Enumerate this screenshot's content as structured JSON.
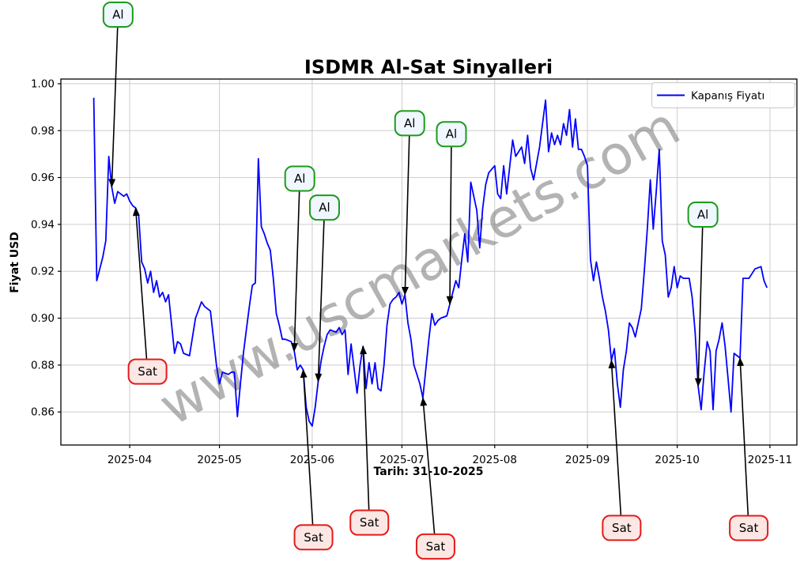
{
  "chart_data": {
    "type": "line",
    "title": "ISDMR Al-Sat Sinyalleri",
    "xlabel": "Tarih: 31-10-2025",
    "ylabel": "Fiyat USD",
    "watermark": "www.uscmarkets.com",
    "legend": "Kapanış Fiyatı",
    "legend_position": "upper-right",
    "grid": true,
    "line_color": "#0000ff",
    "x_domain": [
      "2025-03-09",
      "2025-11-10"
    ],
    "y_domain": [
      0.8459,
      1.002
    ],
    "x_ticks": [
      {
        "date": "2025-04-01",
        "label": "2025-04"
      },
      {
        "date": "2025-05-01",
        "label": "2025-05"
      },
      {
        "date": "2025-06-01",
        "label": "2025-06"
      },
      {
        "date": "2025-07-01",
        "label": "2025-07"
      },
      {
        "date": "2025-08-01",
        "label": "2025-08"
      },
      {
        "date": "2025-09-01",
        "label": "2025-09"
      },
      {
        "date": "2025-10-01",
        "label": "2025-10"
      },
      {
        "date": "2025-11-01",
        "label": "2025-11"
      }
    ],
    "y_ticks": [
      {
        "value": 1.0,
        "label": "1.00"
      },
      {
        "value": 0.98,
        "label": "0.98"
      },
      {
        "value": 0.96,
        "label": "0.96"
      },
      {
        "value": 0.94,
        "label": "0.94"
      },
      {
        "value": 0.92,
        "label": "0.92"
      },
      {
        "value": 0.9,
        "label": "0.90"
      },
      {
        "value": 0.88,
        "label": "0.88"
      },
      {
        "value": 0.86,
        "label": "0.86"
      }
    ],
    "series": [
      {
        "name": "Kapanış Fiyatı",
        "color": "#0000ff",
        "points": [
          [
            "2025-03-20",
            0.994
          ],
          [
            "2025-03-21",
            0.916
          ],
          [
            "2025-03-23",
            0.926
          ],
          [
            "2025-03-24",
            0.933
          ],
          [
            "2025-03-25",
            0.969
          ],
          [
            "2025-03-26",
            0.956
          ],
          [
            "2025-03-27",
            0.949
          ],
          [
            "2025-03-28",
            0.954
          ],
          [
            "2025-03-30",
            0.952
          ],
          [
            "2025-03-31",
            0.953
          ],
          [
            "2025-04-01",
            0.95
          ],
          [
            "2025-04-02",
            0.948
          ],
          [
            "2025-04-03",
            0.947
          ],
          [
            "2025-04-04",
            0.944
          ],
          [
            "2025-04-05",
            0.924
          ],
          [
            "2025-04-06",
            0.921
          ],
          [
            "2025-04-07",
            0.915
          ],
          [
            "2025-04-08",
            0.92
          ],
          [
            "2025-04-09",
            0.911
          ],
          [
            "2025-04-10",
            0.916
          ],
          [
            "2025-04-11",
            0.909
          ],
          [
            "2025-04-12",
            0.911
          ],
          [
            "2025-04-13",
            0.907
          ],
          [
            "2025-04-14",
            0.91
          ],
          [
            "2025-04-16",
            0.885
          ],
          [
            "2025-04-17",
            0.89
          ],
          [
            "2025-04-18",
            0.889
          ],
          [
            "2025-04-19",
            0.885
          ],
          [
            "2025-04-21",
            0.884
          ],
          [
            "2025-04-22",
            0.892
          ],
          [
            "2025-04-23",
            0.9
          ],
          [
            "2025-04-25",
            0.907
          ],
          [
            "2025-04-26",
            0.905
          ],
          [
            "2025-04-28",
            0.903
          ],
          [
            "2025-04-30",
            0.88
          ],
          [
            "2025-05-01",
            0.872
          ],
          [
            "2025-05-02",
            0.877
          ],
          [
            "2025-05-04",
            0.876
          ],
          [
            "2025-05-05",
            0.877
          ],
          [
            "2025-05-06",
            0.877
          ],
          [
            "2025-05-07",
            0.858
          ],
          [
            "2025-05-08",
            0.872
          ],
          [
            "2025-05-09",
            0.885
          ],
          [
            "2025-05-10",
            0.895
          ],
          [
            "2025-05-11",
            0.905
          ],
          [
            "2025-05-12",
            0.914
          ],
          [
            "2025-05-13",
            0.915
          ],
          [
            "2025-05-14",
            0.968
          ],
          [
            "2025-05-15",
            0.939
          ],
          [
            "2025-05-16",
            0.936
          ],
          [
            "2025-05-17",
            0.932
          ],
          [
            "2025-05-18",
            0.929
          ],
          [
            "2025-05-19",
            0.917
          ],
          [
            "2025-05-20",
            0.902
          ],
          [
            "2025-05-21",
            0.897
          ],
          [
            "2025-05-22",
            0.891
          ],
          [
            "2025-05-23",
            0.891
          ],
          [
            "2025-05-25",
            0.89
          ],
          [
            "2025-05-26",
            0.886
          ],
          [
            "2025-05-27",
            0.878
          ],
          [
            "2025-05-28",
            0.88
          ],
          [
            "2025-05-29",
            0.878
          ],
          [
            "2025-05-30",
            0.862
          ],
          [
            "2025-05-31",
            0.856
          ],
          [
            "2025-06-01",
            0.854
          ],
          [
            "2025-06-02",
            0.862
          ],
          [
            "2025-06-03",
            0.873
          ],
          [
            "2025-06-04",
            0.882
          ],
          [
            "2025-06-05",
            0.888
          ],
          [
            "2025-06-06",
            0.893
          ],
          [
            "2025-06-07",
            0.895
          ],
          [
            "2025-06-09",
            0.894
          ],
          [
            "2025-06-10",
            0.896
          ],
          [
            "2025-06-11",
            0.893
          ],
          [
            "2025-06-12",
            0.895
          ],
          [
            "2025-06-13",
            0.876
          ],
          [
            "2025-06-14",
            0.889
          ],
          [
            "2025-06-16",
            0.868
          ],
          [
            "2025-06-17",
            0.88
          ],
          [
            "2025-06-18",
            0.888
          ],
          [
            "2025-06-19",
            0.87
          ],
          [
            "2025-06-20",
            0.881
          ],
          [
            "2025-06-21",
            0.872
          ],
          [
            "2025-06-22",
            0.881
          ],
          [
            "2025-06-23",
            0.87
          ],
          [
            "2025-06-24",
            0.869
          ],
          [
            "2025-06-25",
            0.88
          ],
          [
            "2025-06-26",
            0.897
          ],
          [
            "2025-06-27",
            0.906
          ],
          [
            "2025-06-28",
            0.908
          ],
          [
            "2025-06-29",
            0.909
          ],
          [
            "2025-06-30",
            0.911
          ],
          [
            "2025-07-01",
            0.906
          ],
          [
            "2025-07-02",
            0.91
          ],
          [
            "2025-07-03",
            0.898
          ],
          [
            "2025-07-04",
            0.891
          ],
          [
            "2025-07-05",
            0.88
          ],
          [
            "2025-07-07",
            0.872
          ],
          [
            "2025-07-08",
            0.866
          ],
          [
            "2025-07-10",
            0.891
          ],
          [
            "2025-07-11",
            0.902
          ],
          [
            "2025-07-12",
            0.897
          ],
          [
            "2025-07-13",
            0.899
          ],
          [
            "2025-07-14",
            0.9
          ],
          [
            "2025-07-16",
            0.901
          ],
          [
            "2025-07-17",
            0.906
          ],
          [
            "2025-07-18",
            0.911
          ],
          [
            "2025-07-19",
            0.916
          ],
          [
            "2025-07-20",
            0.913
          ],
          [
            "2025-07-21",
            0.925
          ],
          [
            "2025-07-22",
            0.936
          ],
          [
            "2025-07-23",
            0.924
          ],
          [
            "2025-07-24",
            0.958
          ],
          [
            "2025-07-26",
            0.946
          ],
          [
            "2025-07-27",
            0.93
          ],
          [
            "2025-07-28",
            0.947
          ],
          [
            "2025-07-29",
            0.957
          ],
          [
            "2025-07-30",
            0.962
          ],
          [
            "2025-08-01",
            0.965
          ],
          [
            "2025-08-02",
            0.953
          ],
          [
            "2025-08-03",
            0.951
          ],
          [
            "2025-08-04",
            0.965
          ],
          [
            "2025-08-05",
            0.953
          ],
          [
            "2025-08-07",
            0.976
          ],
          [
            "2025-08-08",
            0.969
          ],
          [
            "2025-08-10",
            0.973
          ],
          [
            "2025-08-11",
            0.966
          ],
          [
            "2025-08-12",
            0.978
          ],
          [
            "2025-08-13",
            0.964
          ],
          [
            "2025-08-14",
            0.959
          ],
          [
            "2025-08-16",
            0.973
          ],
          [
            "2025-08-18",
            0.993
          ],
          [
            "2025-08-19",
            0.971
          ],
          [
            "2025-08-20",
            0.979
          ],
          [
            "2025-08-21",
            0.974
          ],
          [
            "2025-08-22",
            0.978
          ],
          [
            "2025-08-23",
            0.974
          ],
          [
            "2025-08-24",
            0.983
          ],
          [
            "2025-08-25",
            0.978
          ],
          [
            "2025-08-26",
            0.989
          ],
          [
            "2025-08-27",
            0.973
          ],
          [
            "2025-08-28",
            0.985
          ],
          [
            "2025-08-29",
            0.972
          ],
          [
            "2025-08-30",
            0.972
          ],
          [
            "2025-08-31",
            0.969
          ],
          [
            "2025-09-01",
            0.965
          ],
          [
            "2025-09-02",
            0.925
          ],
          [
            "2025-09-03",
            0.916
          ],
          [
            "2025-09-04",
            0.924
          ],
          [
            "2025-09-05",
            0.917
          ],
          [
            "2025-09-06",
            0.909
          ],
          [
            "2025-09-07",
            0.903
          ],
          [
            "2025-09-08",
            0.895
          ],
          [
            "2025-09-09",
            0.882
          ],
          [
            "2025-09-10",
            0.887
          ],
          [
            "2025-09-11",
            0.872
          ],
          [
            "2025-09-12",
            0.862
          ],
          [
            "2025-09-13",
            0.878
          ],
          [
            "2025-09-14",
            0.886
          ],
          [
            "2025-09-15",
            0.898
          ],
          [
            "2025-09-16",
            0.896
          ],
          [
            "2025-09-17",
            0.892
          ],
          [
            "2025-09-19",
            0.904
          ],
          [
            "2025-09-20",
            0.92
          ],
          [
            "2025-09-21",
            0.938
          ],
          [
            "2025-09-22",
            0.959
          ],
          [
            "2025-09-23",
            0.938
          ],
          [
            "2025-09-24",
            0.954
          ],
          [
            "2025-09-25",
            0.972
          ],
          [
            "2025-09-26",
            0.933
          ],
          [
            "2025-09-27",
            0.927
          ],
          [
            "2025-09-28",
            0.909
          ],
          [
            "2025-09-29",
            0.913
          ],
          [
            "2025-09-30",
            0.922
          ],
          [
            "2025-10-01",
            0.913
          ],
          [
            "2025-10-02",
            0.918
          ],
          [
            "2025-10-03",
            0.917
          ],
          [
            "2025-10-05",
            0.917
          ],
          [
            "2025-10-06",
            0.909
          ],
          [
            "2025-10-07",
            0.894
          ],
          [
            "2025-10-08",
            0.871
          ],
          [
            "2025-10-09",
            0.861
          ],
          [
            "2025-10-10",
            0.877
          ],
          [
            "2025-10-11",
            0.89
          ],
          [
            "2025-10-12",
            0.886
          ],
          [
            "2025-10-13",
            0.861
          ],
          [
            "2025-10-14",
            0.886
          ],
          [
            "2025-10-15",
            0.891
          ],
          [
            "2025-10-16",
            0.898
          ],
          [
            "2025-10-17",
            0.888
          ],
          [
            "2025-10-18",
            0.874
          ],
          [
            "2025-10-19",
            0.86
          ],
          [
            "2025-10-20",
            0.885
          ],
          [
            "2025-10-21",
            0.884
          ],
          [
            "2025-10-22",
            0.883
          ],
          [
            "2025-10-23",
            0.917
          ],
          [
            "2025-10-25",
            0.917
          ],
          [
            "2025-10-26",
            0.919
          ],
          [
            "2025-10-27",
            0.921
          ],
          [
            "2025-10-29",
            0.922
          ],
          [
            "2025-10-30",
            0.916
          ],
          [
            "2025-10-31",
            0.913
          ]
        ]
      }
    ],
    "signals": [
      {
        "label": "Al",
        "date": "2025-03-26",
        "price": 0.956,
        "box_dx": 8,
        "box_dy": -218
      },
      {
        "label": "Sat",
        "date": "2025-04-03",
        "price": 0.947,
        "box_dx": 15,
        "box_dy": 207
      },
      {
        "label": "Al",
        "date": "2025-05-26",
        "price": 0.886,
        "box_dx": 7,
        "box_dy": -218
      },
      {
        "label": "Sat",
        "date": "2025-05-29",
        "price": 0.878,
        "box_dx": 13,
        "box_dy": 212
      },
      {
        "label": "Al",
        "date": "2025-06-03",
        "price": 0.873,
        "box_dx": 8,
        "box_dy": -220
      },
      {
        "label": "Sat",
        "date": "2025-06-18",
        "price": 0.888,
        "box_dx": 8,
        "box_dy": 223
      },
      {
        "label": "Al",
        "date": "2025-07-02",
        "price": 0.91,
        "box_dx": 6,
        "box_dy": -217
      },
      {
        "label": "Sat",
        "date": "2025-07-08",
        "price": 0.866,
        "box_dx": 16,
        "box_dy": 188
      },
      {
        "label": "Al",
        "date": "2025-07-17",
        "price": 0.906,
        "box_dx": 2,
        "box_dy": -215
      },
      {
        "label": "Sat",
        "date": "2025-09-09",
        "price": 0.882,
        "box_dx": 13,
        "box_dy": 212
      },
      {
        "label": "Al",
        "date": "2025-10-08",
        "price": 0.871,
        "box_dx": 6,
        "box_dy": -217
      },
      {
        "label": "Sat",
        "date": "2025-10-22",
        "price": 0.883,
        "box_dx": 11,
        "box_dy": 215
      }
    ],
    "signal_styles": {
      "Al": {
        "border": "#1b9b1b",
        "fill": "#f0f7fe"
      },
      "Sat": {
        "border": "#e41b1b",
        "fill": "#fce7e4"
      },
      "arrow_color": "#000000"
    }
  }
}
